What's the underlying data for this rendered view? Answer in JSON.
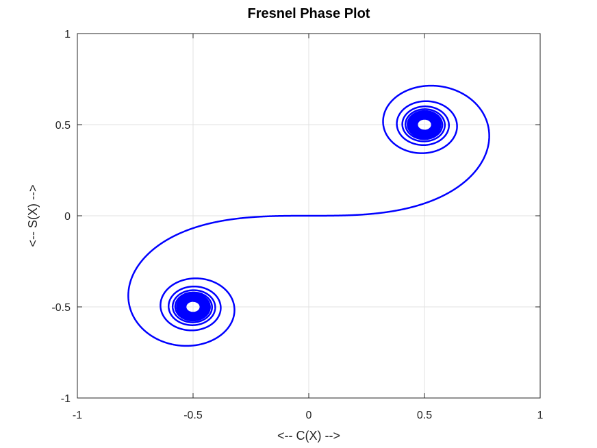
{
  "chart_data": {
    "type": "line",
    "title": "Fresnel Phase Plot",
    "xlabel": "<-- C(X) -->",
    "ylabel": "<-- S(X) -->",
    "xlim": [
      -1,
      1
    ],
    "ylim": [
      -1,
      1
    ],
    "xticks": [
      -1,
      -0.5,
      0,
      0.5,
      1
    ],
    "yticks": [
      -1,
      -0.5,
      0,
      0.5,
      1
    ],
    "xtick_labels": [
      "-1",
      "-0.5",
      "0",
      "0.5",
      "1"
    ],
    "ytick_labels": [
      "-1",
      "-0.5",
      "0",
      "0.5",
      "1"
    ],
    "grid": true,
    "series": [
      {
        "color": "#0000ff",
        "x_range": [
          -10,
          10
        ],
        "curve": "Euler spiral (C(x), S(x)) traced from x = -10 to x = 10; spirals toward (-0.5, -0.5) and (0.5, 0.5)"
      }
    ]
  }
}
